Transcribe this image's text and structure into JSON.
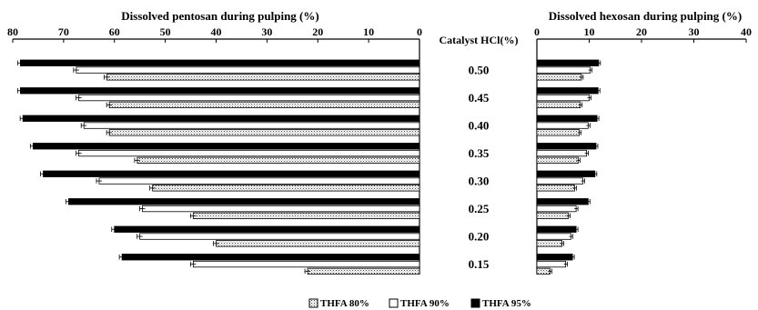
{
  "chart_data": [
    {
      "type": "bar",
      "orientation": "horizontal",
      "direction": "reversed",
      "title": "Dissolved pentosan during pulping (%)",
      "xlim": [
        0,
        80
      ],
      "ticks": [
        "80",
        "70",
        "60",
        "50",
        "40",
        "30",
        "20",
        "10",
        "0"
      ],
      "categories": [
        "0.50",
        "0.45",
        "0.40",
        "0.35",
        "0.30",
        "0.25",
        "0.20",
        "0.15"
      ],
      "category_axis_label": "Catalyst HCl(%)",
      "series": [
        {
          "name": "THFA 95%",
          "values": [
            78.5,
            78.5,
            78.0,
            76.0,
            74.0,
            69.0,
            60.0,
            58.5
          ]
        },
        {
          "name": "THFA 90%",
          "values": [
            67.5,
            67.0,
            66.0,
            67.0,
            63.0,
            54.5,
            55.0,
            44.5
          ]
        },
        {
          "name": "THFA 80%",
          "values": [
            61.5,
            61.0,
            61.0,
            55.5,
            52.5,
            44.5,
            40.0,
            22.0
          ]
        }
      ],
      "grid": false
    },
    {
      "type": "bar",
      "orientation": "horizontal",
      "title": "Dissolved hexosan during pulping (%)",
      "xlim": [
        0,
        40
      ],
      "ticks": [
        "0",
        "10",
        "20",
        "30",
        "40"
      ],
      "categories": [
        "0.50",
        "0.45",
        "0.40",
        "0.35",
        "0.30",
        "0.25",
        "0.20",
        "0.15"
      ],
      "series": [
        {
          "name": "THFA 95%",
          "values": [
            11.8,
            11.7,
            11.5,
            11.3,
            11.1,
            9.8,
            7.5,
            6.8
          ]
        },
        {
          "name": "THFA 90%",
          "values": [
            10.2,
            10.0,
            9.8,
            9.5,
            8.8,
            7.5,
            6.5,
            5.5
          ]
        },
        {
          "name": "THFA 80%",
          "values": [
            8.5,
            8.3,
            8.1,
            7.9,
            7.2,
            6.0,
            4.8,
            2.5
          ]
        }
      ],
      "grid": false
    }
  ],
  "legend": {
    "placement": "bottom",
    "items": [
      {
        "label": "THFA 80%",
        "style": "dotted"
      },
      {
        "label": "THFA 90%",
        "style": "white"
      },
      {
        "label": "THFA 95%",
        "style": "black"
      }
    ]
  },
  "colors": {
    "thfa95": "#000000",
    "thfa90": "#ffffff",
    "thfa80": "#e6e6e6",
    "axis": "#000000"
  }
}
